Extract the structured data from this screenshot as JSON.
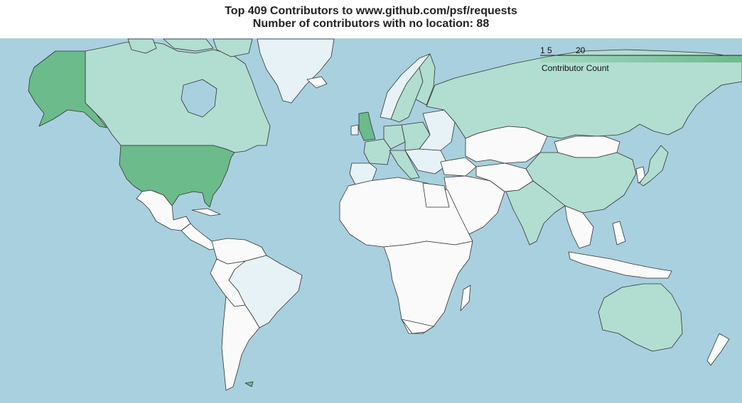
{
  "title": {
    "line1": "Top 409 Contributors to www.github.com/psf/requests",
    "line2": "Number of contributors with no location: 88"
  },
  "legend": {
    "title": "Contributor Count",
    "ticks": [
      "1",
      "5",
      "20"
    ]
  },
  "colors": {
    "ocean": "#a9d0df",
    "none": "#fafafa",
    "low": "#e7f2f6",
    "mid": "#b1ded0",
    "high": "#6bbb8b",
    "border": "#333333"
  }
}
